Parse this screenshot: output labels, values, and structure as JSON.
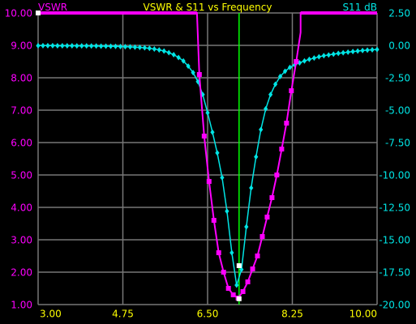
{
  "chart_data": {
    "type": "line",
    "title": "VSWR & S11 vs Frequency",
    "left_label": "VSWR",
    "right_label": "S11 dB",
    "xlim": [
      3.0,
      10.0
    ],
    "ylim_left": [
      1.0,
      10.0
    ],
    "ylim_right": [
      -20.0,
      2.5
    ],
    "x_ticks": [
      "3.00",
      "4.75",
      "6.50",
      "8.25",
      "10.00"
    ],
    "x_tick_values": [
      3.0,
      4.75,
      6.5,
      8.25,
      10.0
    ],
    "left_ticks": [
      "10.00",
      "9.00",
      "8.00",
      "7.00",
      "6.00",
      "5.00",
      "4.00",
      "3.00",
      "2.00",
      "1.00"
    ],
    "left_tick_values": [
      10,
      9,
      8,
      7,
      6,
      5,
      4,
      3,
      2,
      1
    ],
    "right_ticks": [
      "2.50",
      "0.00",
      "-2.50",
      "-5.00",
      "-7.50",
      "-10.00",
      "-12.50",
      "-15.00",
      "-17.50",
      "-20.00"
    ],
    "right_tick_values": [
      2.5,
      0,
      -2.5,
      -5,
      -7.5,
      -10,
      -12.5,
      -15,
      -17.5,
      -20
    ],
    "marker_x": 7.15,
    "colors": {
      "vswr": "#ff00ff",
      "s11": "#00e5e5",
      "marker": "#00ff00",
      "grid": "#777777",
      "x_tick_text": "#ffff00",
      "title_text": "#ffff00"
    },
    "series": [
      {
        "axis": "left",
        "values_x": [
          3.0,
          6.28,
          6.28,
          6.33,
          6.43,
          6.53,
          6.63,
          6.73,
          6.83,
          6.93,
          7.03,
          7.13,
          7.23,
          7.33,
          7.43,
          7.53,
          7.63,
          7.73,
          7.83,
          7.93,
          8.03,
          8.13,
          8.23,
          8.33,
          8.42,
          8.42,
          10.0
        ],
        "values_y": [
          10.0,
          10.0,
          10.0,
          8.1,
          6.2,
          4.8,
          3.6,
          2.6,
          2.0,
          1.5,
          1.3,
          1.2,
          1.4,
          1.7,
          2.1,
          2.5,
          3.1,
          3.7,
          4.3,
          5.0,
          5.8,
          6.6,
          7.6,
          8.5,
          9.4,
          10.0,
          10.0
        ],
        "markers_x": [
          6.33,
          6.43,
          6.53,
          6.63,
          6.73,
          6.83,
          6.93,
          7.03,
          7.13,
          7.23,
          7.33,
          7.43,
          7.53,
          7.63,
          7.73,
          7.83,
          7.93,
          8.03,
          8.13,
          8.23,
          8.33
        ],
        "markers_y": [
          8.1,
          6.2,
          4.8,
          3.6,
          2.6,
          2.0,
          1.5,
          1.3,
          1.2,
          1.4,
          1.7,
          2.1,
          2.5,
          3.1,
          3.7,
          4.3,
          5.0,
          5.8,
          6.6,
          7.6,
          8.5
        ]
      },
      {
        "axis": "right",
        "x": [
          3.0,
          3.1,
          3.2,
          3.3,
          3.4,
          3.5,
          3.6,
          3.7,
          3.8,
          3.9,
          4.0,
          4.1,
          4.2,
          4.3,
          4.4,
          4.5,
          4.6,
          4.7,
          4.8,
          4.9,
          5.0,
          5.1,
          5.2,
          5.3,
          5.4,
          5.5,
          5.6,
          5.7,
          5.8,
          5.9,
          6.0,
          6.1,
          6.2,
          6.3,
          6.4,
          6.5,
          6.6,
          6.7,
          6.8,
          6.9,
          7.0,
          7.1,
          7.2,
          7.3,
          7.4,
          7.5,
          7.6,
          7.7,
          7.8,
          7.9,
          8.0,
          8.1,
          8.2,
          8.3,
          8.4,
          8.5,
          8.6,
          8.7,
          8.8,
          8.9,
          9.0,
          9.1,
          9.2,
          9.3,
          9.4,
          9.5,
          9.6,
          9.7,
          9.8,
          9.9,
          10.0
        ],
        "values": [
          -0.02,
          -0.02,
          -0.02,
          -0.02,
          -0.03,
          -0.03,
          -0.03,
          -0.03,
          -0.04,
          -0.04,
          -0.04,
          -0.05,
          -0.05,
          -0.06,
          -0.06,
          -0.07,
          -0.08,
          -0.09,
          -0.1,
          -0.12,
          -0.14,
          -0.16,
          -0.19,
          -0.23,
          -0.28,
          -0.35,
          -0.44,
          -0.56,
          -0.72,
          -0.94,
          -1.2,
          -1.6,
          -2.1,
          -2.8,
          -3.8,
          -5.2,
          -6.7,
          -8.3,
          -10.2,
          -12.8,
          -16.0,
          -18.5,
          -17.3,
          -14.0,
          -11.0,
          -8.6,
          -6.5,
          -4.9,
          -3.8,
          -3.0,
          -2.4,
          -2.0,
          -1.7,
          -1.5,
          -1.35,
          -1.2,
          -1.08,
          -0.98,
          -0.88,
          -0.8,
          -0.74,
          -0.68,
          -0.62,
          -0.57,
          -0.52,
          -0.48,
          -0.44,
          -0.4,
          -0.37,
          -0.34,
          -0.32
        ]
      }
    ]
  }
}
